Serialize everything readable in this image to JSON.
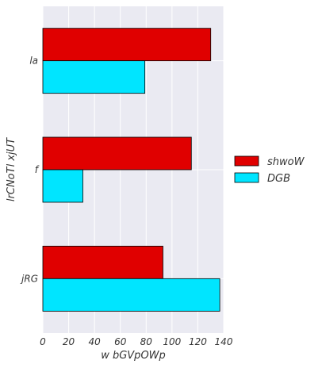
{
  "chart_data": {
    "type": "bar",
    "orientation": "horizontal",
    "categories": [
      "jRG",
      "f",
      "la"
    ],
    "series": [
      {
        "name": "shwoW",
        "color": "#e00000",
        "values": [
          93,
          115,
          130
        ]
      },
      {
        "name": "DGB",
        "color": "#00e5ff",
        "values": [
          137,
          31,
          79
        ]
      }
    ],
    "xlabel": "w bGVpOWp",
    "ylabel": "lrCNoTl xjUT",
    "xlim": [
      0,
      140
    ],
    "xticks": [
      0,
      20,
      40,
      60,
      80,
      100,
      120,
      140
    ],
    "grid": true,
    "legend_position": "right",
    "plot_background": "#eaeaf2"
  }
}
